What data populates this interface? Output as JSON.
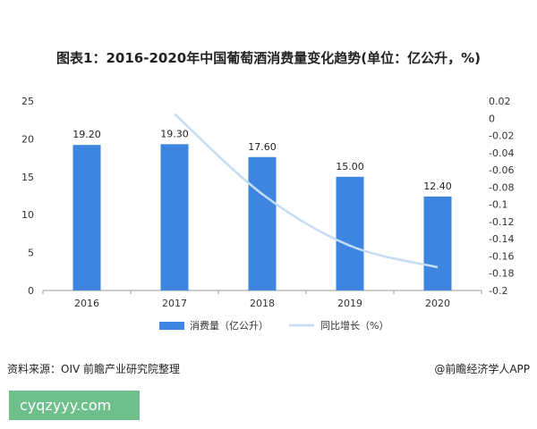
{
  "chart_data": {
    "type": "bar",
    "title": "图表1：2016-2020年中国葡萄酒消费量变化趋势(单位：亿公升，%)",
    "categories": [
      "2016",
      "2017",
      "2018",
      "2019",
      "2020"
    ],
    "series": [
      {
        "name": "消费量（亿公升）",
        "kind": "bar",
        "axis": "left",
        "color": "#3d85e0",
        "values": [
          19.2,
          19.3,
          17.6,
          15.0,
          12.4
        ],
        "value_labels": [
          "19.20",
          "19.30",
          "17.60",
          "15.00",
          "12.40"
        ]
      },
      {
        "name": "同比增长（%）",
        "kind": "line",
        "axis": "right",
        "color": "#c5dcf5",
        "values": [
          null,
          0.005,
          -0.088,
          -0.148,
          -0.173
        ]
      }
    ],
    "y_left": {
      "min": 0,
      "max": 25,
      "ticks": [
        "0",
        "5",
        "10",
        "15",
        "20",
        "25"
      ]
    },
    "y_right": {
      "min": -0.2,
      "max": 0.02,
      "ticks": [
        "0.02",
        "0",
        "-0.02",
        "-0.04",
        "-0.06",
        "-0.08",
        "-0.1",
        "-0.12",
        "-0.14",
        "-0.16",
        "-0.18",
        "-0.2"
      ]
    },
    "legend_position": "bottom",
    "grid": false
  },
  "footer": {
    "source": "资料来源：OIV 前瞻产业研究院整理",
    "brand": "@前瞻经济学人APP",
    "site": "cyqzyyy.com"
  }
}
